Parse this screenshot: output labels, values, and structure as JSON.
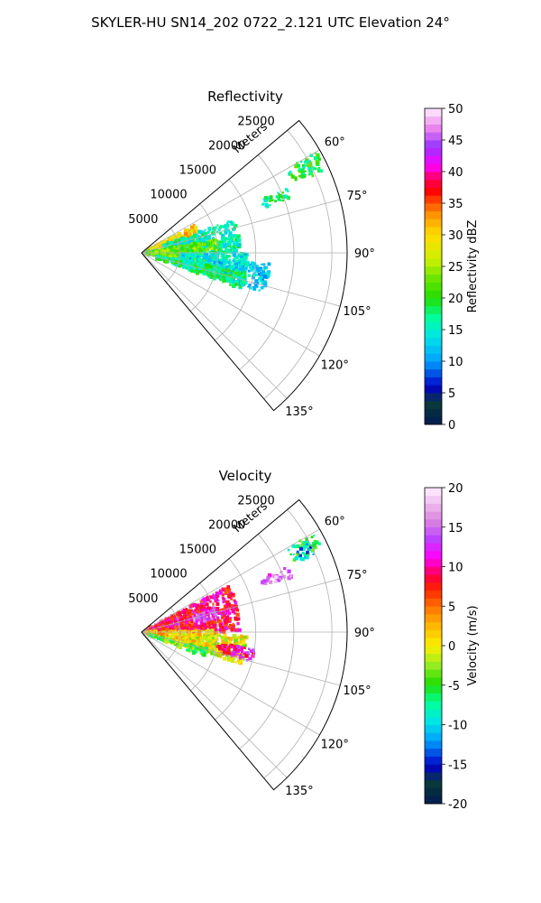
{
  "suptitle": "SKYLER-HU  SN14_202  0722_2.121 UTC Elevation 24°",
  "chart_data": [
    {
      "type": "heatmap",
      "title": "Reflectivity",
      "projection": "polar sector",
      "radial_label": "Meters",
      "theta_range_deg": [
        50,
        140
      ],
      "r_range": [
        0,
        27000
      ],
      "r_ticks": [
        5000,
        10000,
        15000,
        20000,
        25000
      ],
      "theta_ticks": [
        "60°",
        "75°",
        "90°",
        "105°",
        "120°",
        "135°"
      ],
      "grid": true,
      "colorbar": {
        "label": "Reflectivity dBZ",
        "range": [
          0,
          50
        ],
        "ticks": [
          0,
          5,
          10,
          15,
          20,
          25,
          30,
          35,
          40,
          45,
          50
        ]
      },
      "echo_regions": [
        {
          "theta": [
            62,
            71
          ],
          "r": [
            500,
            8000
          ],
          "value": 30
        },
        {
          "theta": [
            70,
            90
          ],
          "r": [
            3000,
            13000
          ],
          "value": 16
        },
        {
          "theta": [
            80,
            102
          ],
          "r": [
            500,
            10000
          ],
          "value": 22
        },
        {
          "theta": [
            90,
            108
          ],
          "r": [
            5000,
            14000
          ],
          "value": 14
        },
        {
          "theta": [
            95,
            108
          ],
          "r": [
            10000,
            17000
          ],
          "value": 13
        },
        {
          "theta": [
            100,
            110
          ],
          "r": [
            2000,
            14000
          ],
          "value": 18
        },
        {
          "theta": [
            60,
            65
          ],
          "r": [
            22000,
            26500
          ],
          "value": 19
        },
        {
          "theta": [
            66,
            70
          ],
          "r": [
            17000,
            21000
          ],
          "value": 18
        },
        {
          "theta": [
            62,
            66
          ],
          "r": [
            24000,
            26000
          ],
          "value": 20
        }
      ]
    },
    {
      "type": "heatmap",
      "title": "Velocity",
      "projection": "polar sector",
      "radial_label": "Meters",
      "theta_range_deg": [
        50,
        140
      ],
      "r_range": [
        0,
        27000
      ],
      "r_ticks": [
        5000,
        10000,
        15000,
        20000,
        25000
      ],
      "theta_ticks": [
        "60°",
        "75°",
        "90°",
        "105°",
        "120°",
        "135°"
      ],
      "grid": true,
      "colorbar": {
        "label": "Velocity (m/s)",
        "range": [
          -20,
          20
        ],
        "ticks": [
          -20,
          -15,
          -10,
          -5,
          0,
          5,
          10,
          15,
          20
        ]
      },
      "echo_regions": [
        {
          "theta": [
            62,
            90
          ],
          "r": [
            500,
            13000
          ],
          "value": 9
        },
        {
          "theta": [
            88,
            104
          ],
          "r": [
            500,
            10000
          ],
          "value": 2
        },
        {
          "theta": [
            92,
            108
          ],
          "r": [
            5000,
            14000
          ],
          "value": 0
        },
        {
          "theta": [
            104,
            112
          ],
          "r": [
            1000,
            9000
          ],
          "value": -4
        },
        {
          "theta": [
            72,
            80
          ],
          "r": [
            7000,
            10000
          ],
          "value": 14
        },
        {
          "theta": [
            60,
            65
          ],
          "r": [
            22000,
            26500
          ],
          "value": -6
        },
        {
          "theta": [
            66,
            70
          ],
          "r": [
            17000,
            21000
          ],
          "value": 15
        },
        {
          "theta": [
            62,
            66
          ],
          "r": [
            23000,
            25000
          ],
          "value": -11
        },
        {
          "theta": [
            98,
            105
          ],
          "r": [
            10000,
            15000
          ],
          "value": 11
        }
      ]
    }
  ]
}
